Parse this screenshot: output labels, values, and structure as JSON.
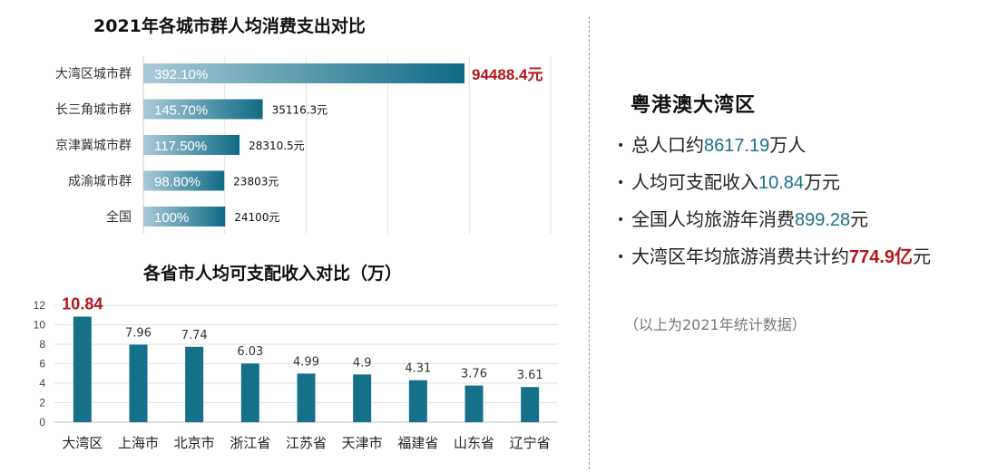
{
  "chart_data": [
    {
      "type": "bar",
      "orientation": "horizontal",
      "title": "2021年各城市群人均消费支出对比",
      "categories": [
        "大湾区城市群",
        "长三角城市群",
        "京津冀城市群",
        "成渝城市群",
        "全国"
      ],
      "values": [
        94488.4,
        35116.3,
        28310.5,
        23803,
        24100
      ],
      "value_labels": [
        "94488.4元",
        "35116.3元",
        "28310.5元",
        "23803元",
        "24100元"
      ],
      "percent_labels": [
        "392.10%",
        "145.70%",
        "117.50%",
        "98.80%",
        "100%"
      ],
      "grid": true,
      "colors": {
        "bar_start": "#a9cbd9",
        "bar_end": "#0f6a85",
        "highlight_label": "#b5171d"
      }
    },
    {
      "type": "bar",
      "title": "各省市人均可支配收入对比（万）",
      "categories": [
        "大湾区",
        "上海市",
        "北京市",
        "浙江省",
        "江苏省",
        "天津市",
        "福建省",
        "山东省",
        "辽宁省"
      ],
      "values": [
        10.84,
        7.96,
        7.74,
        6.03,
        4.99,
        4.9,
        4.31,
        3.76,
        3.61
      ],
      "value_labels": [
        "10.84",
        "7.96",
        "7.74",
        "6.03",
        "4.99",
        "4.9",
        "4.31",
        "3.76",
        "3.61"
      ],
      "y_ticks": [
        "0",
        "2",
        "4",
        "6",
        "8",
        "10",
        "12"
      ],
      "ylim": [
        0,
        12
      ],
      "grid": true,
      "colors": {
        "bar": "#147189",
        "highlight_label": "#b5171d"
      }
    }
  ],
  "panel": {
    "title": "粤港澳大湾区",
    "bullet_symbol": "•",
    "items": [
      {
        "prefix": "总人口约",
        "value": "8617.19",
        "suffix": "万人"
      },
      {
        "prefix": "人均可支配收入",
        "value": "10.84",
        "suffix": "万元"
      },
      {
        "prefix": "全国人均旅游年消费",
        "value": "899.28",
        "suffix": "元"
      },
      {
        "prefix": "大湾区年均旅游消费共计约",
        "value": "774.9亿",
        "suffix": "元"
      }
    ],
    "note": "（以上为2021年统计数据）"
  }
}
